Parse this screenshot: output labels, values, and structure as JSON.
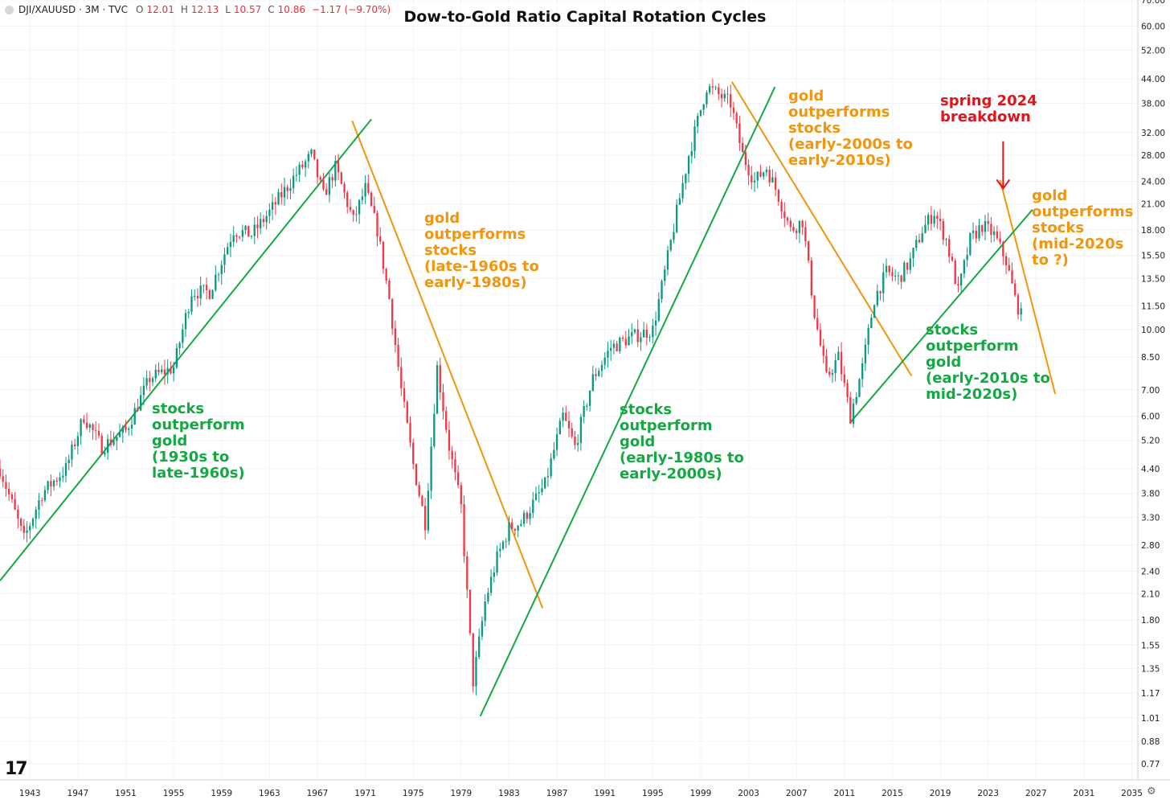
{
  "legend": {
    "symbol": "DJI/XAUUSD · 3M · TVC",
    "open_label": "O",
    "open": "12.01",
    "high_label": "H",
    "high": "12.13",
    "low_label": "L",
    "low": "10.57",
    "close_label": "C",
    "close": "10.86",
    "change": "−1.17 (−9.70%)"
  },
  "annotations": {
    "gold_1": "gold\noutperforms\nstocks\n(late-1960s to\nearly-1980s)",
    "gold_2": "gold\noutperforms\nstocks\n(early-2000s to\nearly-2010s)",
    "gold_3": "gold\noutperforms\nstocks\n(mid-2020s\nto ?)",
    "stocks_1": "stocks\noutperform\ngold\n(1930s to\nlate-1960s)",
    "stocks_2": "stocks\noutperform\ngold\n(early-1980s to\nearly-2000s)",
    "stocks_3": "stocks\noutperform\ngold\n(early-2010s to\nmid-2020s)",
    "breakdown": "spring 2024\nbreakdown"
  },
  "colors": {
    "up": "#089981",
    "down": "#f23645",
    "gold_line": "#f2950c",
    "stocks_line": "#14a842",
    "arrow": "#e0141c"
  },
  "logo": "17",
  "chart_data": {
    "type": "candlestick",
    "title": "Dow-to-Gold Ratio Capital Rotation Cycles",
    "scale": "log",
    "interval": "3M",
    "xlim": [
      1940.5,
      2035.5
    ],
    "ylim": [
      0.7,
      70
    ],
    "x_ticks": [
      "1943",
      "1947",
      "1951",
      "1955",
      "1959",
      "1963",
      "1967",
      "1971",
      "1975",
      "1979",
      "1983",
      "1987",
      "1991",
      "1995",
      "1999",
      "2003",
      "2007",
      "2011",
      "2015",
      "2019",
      "2023",
      "2027",
      "2031",
      "2035"
    ],
    "y_ticks": [
      "70.00",
      "60.00",
      "52.00",
      "44.00",
      "38.00",
      "32.00",
      "28.00",
      "24.00",
      "21.00",
      "18.00",
      "15.50",
      "13.50",
      "11.50",
      "10.00",
      "8.50",
      "7.00",
      "6.00",
      "5.20",
      "4.40",
      "3.80",
      "3.30",
      "2.80",
      "2.40",
      "2.10",
      "1.80",
      "1.55",
      "1.35",
      "1.17",
      "1.01",
      "0.88",
      "0.77"
    ],
    "price_path": [
      [
        1940.5,
        4.4
      ],
      [
        1942.5,
        2.9
      ],
      [
        1944,
        3.8
      ],
      [
        1946,
        4.4
      ],
      [
        1947.5,
        6.0
      ],
      [
        1949,
        5.0
      ],
      [
        1951,
        5.5
      ],
      [
        1953,
        7.5
      ],
      [
        1955,
        8.0
      ],
      [
        1956.5,
        12.5
      ],
      [
        1958,
        12.5
      ],
      [
        1960,
        18.0
      ],
      [
        1961.5,
        17.5
      ],
      [
        1963,
        20.0
      ],
      [
        1965,
        24.5
      ],
      [
        1966.5,
        28.0
      ],
      [
        1967.5,
        22.0
      ],
      [
        1968.5,
        26.0
      ],
      [
        1970,
        19.0
      ],
      [
        1971,
        23.0
      ],
      [
        1972,
        18.0
      ],
      [
        1973,
        12.0
      ],
      [
        1974,
        7.0
      ],
      [
        1975,
        4.5
      ],
      [
        1976,
        3.2
      ],
      [
        1977,
        8.0
      ],
      [
        1978,
        5.0
      ],
      [
        1979,
        3.5
      ],
      [
        1980,
        1.25
      ],
      [
        1981,
        2.0
      ],
      [
        1982,
        2.6
      ],
      [
        1983,
        3.1
      ],
      [
        1984,
        3.2
      ],
      [
        1986,
        4.0
      ],
      [
        1987.5,
        6.0
      ],
      [
        1988.5,
        5.0
      ],
      [
        1990,
        7.5
      ],
      [
        1991.5,
        9.0
      ],
      [
        1993,
        9.5
      ],
      [
        1995,
        10.0
      ],
      [
        1996,
        14.0
      ],
      [
        1997,
        20.0
      ],
      [
        1998,
        28.0
      ],
      [
        1999.5,
        42.0
      ],
      [
        2000.5,
        40.0
      ],
      [
        2001.5,
        38.0
      ],
      [
        2002.5,
        28.0
      ],
      [
        2003.5,
        24.0
      ],
      [
        2004.5,
        26.0
      ],
      [
        2005.5,
        22.0
      ],
      [
        2006.5,
        18.0
      ],
      [
        2007.5,
        19.0
      ],
      [
        2008.5,
        11.0
      ],
      [
        2009.5,
        7.5
      ],
      [
        2010.5,
        8.5
      ],
      [
        2011.5,
        6.0
      ],
      [
        2012.5,
        8.0
      ],
      [
        2013.5,
        12.0
      ],
      [
        2014.5,
        14.0
      ],
      [
        2015.5,
        13.5
      ],
      [
        2016.5,
        15.0
      ],
      [
        2017.5,
        18.0
      ],
      [
        2018.5,
        20.0
      ],
      [
        2019.5,
        17.0
      ],
      [
        2020.5,
        12.5
      ],
      [
        2021.5,
        17.0
      ],
      [
        2022.5,
        18.5
      ],
      [
        2023.5,
        17.5
      ],
      [
        2024.5,
        15.0
      ],
      [
        2025.25,
        12.0
      ],
      [
        2025.75,
        10.86
      ]
    ],
    "trendlines": [
      {
        "role": "gold",
        "from": [
          1969.9,
          34.3
        ],
        "to": [
          1985.8,
          1.93
        ]
      },
      {
        "role": "gold",
        "from": [
          2001.6,
          43.2
        ],
        "to": [
          2016.6,
          7.61
        ]
      },
      {
        "role": "gold",
        "from": [
          2024.0,
          24.2
        ],
        "to": [
          2028.6,
          6.83
        ]
      },
      {
        "role": "stocks",
        "from": [
          1940.5,
          2.27
        ],
        "to": [
          1971.5,
          34.6
        ]
      },
      {
        "role": "stocks",
        "from": [
          1980.6,
          1.02
        ],
        "to": [
          2005.2,
          41.9
        ]
      },
      {
        "role": "stocks",
        "from": [
          2011.5,
          5.78
        ],
        "to": [
          2026.7,
          20.3
        ]
      }
    ],
    "callout_arrow": {
      "x": 2024.25,
      "from": 30.4,
      "to": 23.0
    }
  }
}
